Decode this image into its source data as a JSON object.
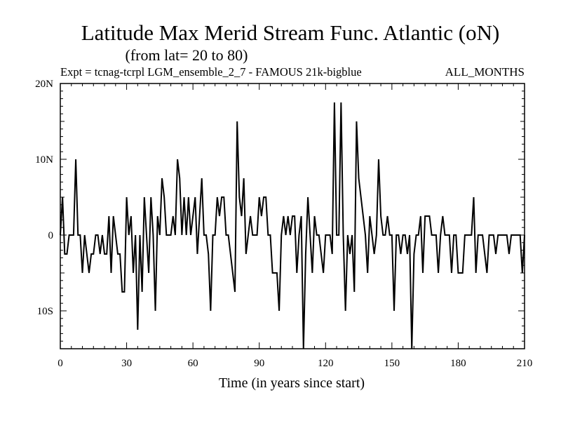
{
  "chart_data": {
    "type": "line",
    "title": "Latitude Max Merid Stream Func. Atlantic (oN)",
    "subtitle": "(from lat= 20 to 80)",
    "experiment": "Expt = tcnag-tcrpl LGM_ensemble_2_7 - FAMOUS 21k-bigblue",
    "period": "ALL_MONTHS",
    "xlabel": "Time (in years since start)",
    "ylabel": "",
    "xlim": [
      0,
      210
    ],
    "ylim": [
      -15,
      20
    ],
    "x_ticks": [
      0,
      30,
      60,
      90,
      120,
      150,
      180,
      210
    ],
    "x_tick_labels": [
      "0",
      "30",
      "60",
      "90",
      "120",
      "150",
      "180",
      "210"
    ],
    "y_ticks": [
      -10,
      0,
      10,
      20
    ],
    "y_tick_labels": [
      "10S",
      "0",
      "10N",
      "20N"
    ],
    "grid": false,
    "series": [
      {
        "name": "",
        "x_start": 0,
        "x_step": 1,
        "values": [
          0,
          5,
          -2.5,
          -2.5,
          0,
          0,
          0,
          10,
          0,
          0,
          -5,
          0,
          -2.5,
          -5,
          -2.5,
          -2.5,
          0,
          0,
          -2.5,
          0,
          -2.5,
          -2.5,
          2.5,
          -5,
          2.5,
          0,
          -2.5,
          -2.5,
          -7.5,
          -7.5,
          5,
          0,
          2.5,
          -5,
          0,
          -12.5,
          0,
          -7.5,
          5,
          0,
          -5,
          5,
          0,
          -10,
          2.5,
          0,
          7.5,
          5,
          0,
          0,
          0,
          2.5,
          0,
          10,
          7.5,
          0,
          5,
          0,
          5,
          0,
          2.5,
          5,
          -2.5,
          2.5,
          7.5,
          0,
          0,
          -2.5,
          -10,
          0,
          0,
          5,
          2.5,
          5,
          5,
          0,
          0,
          -2.5,
          -5,
          -7.5,
          15,
          5,
          2.5,
          7.5,
          -2.5,
          0,
          2.5,
          0,
          0,
          0,
          5,
          2.5,
          5,
          5,
          0,
          0,
          -5,
          -5,
          -5,
          -10,
          0,
          2.5,
          0,
          2.5,
          0,
          2.5,
          2.5,
          -5,
          0,
          2.5,
          -15,
          -2.5,
          5,
          0,
          -5,
          2.5,
          0,
          0,
          -2.5,
          -5,
          0,
          0,
          0,
          -2.5,
          17.5,
          0,
          0,
          17.5,
          0,
          -10,
          0,
          -2.5,
          0,
          -7.5,
          15,
          7.5,
          5,
          2.5,
          0,
          -5,
          2.5,
          0,
          -2.5,
          0,
          10,
          2.5,
          0,
          0,
          2.5,
          0,
          0,
          -10,
          0,
          0,
          -2.5,
          0,
          0,
          -2.5,
          0,
          -15,
          -2.5,
          0,
          0,
          2.5,
          -5,
          2.5,
          2.5,
          2.5,
          0,
          0,
          0,
          -5,
          0,
          2.5,
          0,
          0,
          0,
          -5,
          0,
          0,
          -5,
          -5,
          -5,
          0,
          0,
          0,
          0,
          5,
          -5,
          0,
          0,
          0,
          -2.5,
          -5,
          0,
          0,
          0,
          -2.5,
          0,
          0,
          0,
          0,
          0,
          -2.5,
          0,
          0,
          0,
          0,
          0,
          -5,
          0
        ]
      }
    ]
  }
}
